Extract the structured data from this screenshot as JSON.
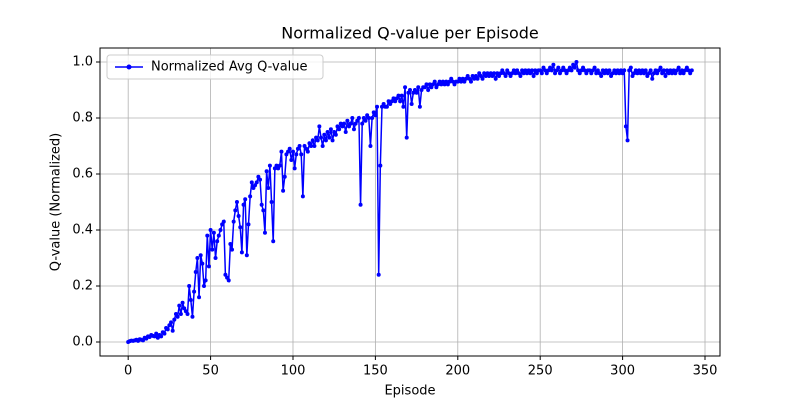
{
  "chart_data": {
    "type": "line",
    "title": "Normalized Q-value per Episode",
    "xlabel": "Episode",
    "ylabel": "Q-value (Normalized)",
    "xlim": [
      -17.1,
      359.1
    ],
    "ylim": [
      -0.05,
      1.05
    ],
    "xticks": [
      0,
      50,
      100,
      150,
      200,
      250,
      300,
      350
    ],
    "yticks": [
      {
        "value": 0,
        "label": "0.0"
      },
      0.2,
      0.4,
      0.6,
      0.8,
      {
        "value": 1,
        "label": "1.0"
      }
    ],
    "grid": true,
    "legend": "upper left",
    "x": [
      0,
      1,
      2,
      3,
      4,
      5,
      6,
      7,
      8,
      9,
      10,
      11,
      12,
      13,
      14,
      15,
      16,
      17,
      18,
      19,
      20,
      21,
      22,
      23,
      24,
      25,
      26,
      27,
      28,
      29,
      30,
      31,
      32,
      33,
      34,
      35,
      36,
      37,
      38,
      39,
      40,
      41,
      42,
      43,
      44,
      45,
      46,
      47,
      48,
      49,
      50,
      51,
      52,
      53,
      54,
      55,
      56,
      57,
      58,
      59,
      60,
      61,
      62,
      63,
      64,
      65,
      66,
      67,
      68,
      69,
      70,
      71,
      72,
      73,
      74,
      75,
      76,
      77,
      78,
      79,
      80,
      81,
      82,
      83,
      84,
      85,
      86,
      87,
      88,
      89,
      90,
      91,
      92,
      93,
      94,
      95,
      96,
      97,
      98,
      99,
      100,
      101,
      102,
      103,
      104,
      105,
      106,
      107,
      108,
      109,
      110,
      111,
      112,
      113,
      114,
      115,
      116,
      117,
      118,
      119,
      120,
      121,
      122,
      123,
      124,
      125,
      126,
      127,
      128,
      129,
      130,
      131,
      132,
      133,
      134,
      135,
      136,
      137,
      138,
      139,
      140,
      141,
      142,
      143,
      144,
      145,
      146,
      147,
      148,
      149,
      150,
      151,
      152,
      153,
      154,
      155,
      156,
      157,
      158,
      159,
      160,
      161,
      162,
      163,
      164,
      165,
      166,
      167,
      168,
      169,
      170,
      171,
      172,
      173,
      174,
      175,
      176,
      177,
      178,
      179,
      180,
      181,
      182,
      183,
      184,
      185,
      186,
      187,
      188,
      189,
      190,
      191,
      192,
      193,
      194,
      195,
      196,
      197,
      198,
      199,
      200,
      201,
      202,
      203,
      204,
      205,
      206,
      207,
      208,
      209,
      210,
      211,
      212,
      213,
      214,
      215,
      216,
      217,
      218,
      219,
      220,
      221,
      222,
      223,
      224,
      225,
      226,
      227,
      228,
      229,
      230,
      231,
      232,
      233,
      234,
      235,
      236,
      237,
      238,
      239,
      240,
      241,
      242,
      243,
      244,
      245,
      246,
      247,
      248,
      249,
      250,
      251,
      252,
      253,
      254,
      255,
      256,
      257,
      258,
      259,
      260,
      261,
      262,
      263,
      264,
      265,
      266,
      267,
      268,
      269,
      270,
      271,
      272,
      273,
      274,
      275,
      276,
      277,
      278,
      279,
      280,
      281,
      282,
      283,
      284,
      285,
      286,
      287,
      288,
      289,
      290,
      291,
      292,
      293,
      294,
      295,
      296,
      297,
      298,
      299,
      300,
      301,
      302,
      303,
      304,
      305,
      306,
      307,
      308,
      309,
      310,
      311,
      312,
      313,
      314,
      315,
      316,
      317,
      318,
      319,
      320,
      321,
      322,
      323,
      324,
      325,
      326,
      327,
      328,
      329,
      330,
      331,
      332,
      333,
      334,
      335,
      336,
      337,
      338,
      339,
      340,
      341,
      342
    ],
    "series": [
      {
        "name": "Normalized Avg Q-value",
        "color": "#0000ff",
        "values": [
          0.0,
          0.003,
          0.005,
          0.004,
          0.006,
          0.008,
          0.004,
          0.01,
          0.008,
          0.006,
          0.015,
          0.012,
          0.02,
          0.018,
          0.025,
          0.022,
          0.02,
          0.03,
          0.015,
          0.025,
          0.02,
          0.035,
          0.03,
          0.05,
          0.045,
          0.06,
          0.07,
          0.04,
          0.08,
          0.1,
          0.09,
          0.13,
          0.1,
          0.14,
          0.12,
          0.11,
          0.1,
          0.2,
          0.15,
          0.09,
          0.18,
          0.25,
          0.3,
          0.16,
          0.31,
          0.28,
          0.2,
          0.22,
          0.38,
          0.27,
          0.4,
          0.33,
          0.39,
          0.3,
          0.36,
          0.38,
          0.4,
          0.42,
          0.43,
          0.24,
          0.23,
          0.22,
          0.35,
          0.33,
          0.43,
          0.47,
          0.5,
          0.45,
          0.41,
          0.32,
          0.49,
          0.51,
          0.31,
          0.42,
          0.52,
          0.57,
          0.55,
          0.56,
          0.57,
          0.59,
          0.58,
          0.49,
          0.47,
          0.39,
          0.61,
          0.55,
          0.63,
          0.5,
          0.36,
          0.62,
          0.63,
          0.62,
          0.63,
          0.68,
          0.54,
          0.59,
          0.67,
          0.68,
          0.69,
          0.65,
          0.68,
          0.62,
          0.67,
          0.69,
          0.7,
          0.67,
          0.52,
          0.7,
          0.69,
          0.68,
          0.71,
          0.7,
          0.72,
          0.7,
          0.73,
          0.72,
          0.77,
          0.73,
          0.7,
          0.74,
          0.72,
          0.75,
          0.73,
          0.76,
          0.72,
          0.75,
          0.74,
          0.77,
          0.76,
          0.78,
          0.77,
          0.78,
          0.75,
          0.79,
          0.77,
          0.78,
          0.8,
          0.76,
          0.78,
          0.79,
          0.8,
          0.49,
          0.78,
          0.8,
          0.79,
          0.81,
          0.8,
          0.7,
          0.8,
          0.82,
          0.81,
          0.84,
          0.24,
          0.63,
          0.84,
          0.85,
          0.84,
          0.84,
          0.86,
          0.85,
          0.86,
          0.87,
          0.86,
          0.87,
          0.88,
          0.86,
          0.88,
          0.84,
          0.91,
          0.73,
          0.89,
          0.9,
          0.85,
          0.89,
          0.9,
          0.89,
          0.91,
          0.84,
          0.9,
          0.91,
          0.91,
          0.92,
          0.9,
          0.92,
          0.91,
          0.92,
          0.93,
          0.91,
          0.92,
          0.93,
          0.92,
          0.93,
          0.92,
          0.93,
          0.92,
          0.93,
          0.94,
          0.93,
          0.92,
          0.93,
          0.93,
          0.94,
          0.93,
          0.94,
          0.93,
          0.94,
          0.95,
          0.94,
          0.93,
          0.95,
          0.94,
          0.95,
          0.94,
          0.96,
          0.95,
          0.94,
          0.96,
          0.95,
          0.96,
          0.95,
          0.96,
          0.95,
          0.96,
          0.94,
          0.96,
          0.95,
          0.96,
          0.97,
          0.96,
          0.95,
          0.97,
          0.96,
          0.95,
          0.96,
          0.97,
          0.96,
          0.97,
          0.96,
          0.95,
          0.97,
          0.96,
          0.97,
          0.96,
          0.97,
          0.96,
          0.97,
          0.95,
          0.97,
          0.96,
          0.97,
          0.97,
          0.96,
          0.98,
          0.97,
          0.96,
          0.97,
          0.98,
          0.97,
          0.99,
          0.96,
          0.97,
          0.98,
          0.96,
          0.97,
          0.98,
          0.97,
          0.96,
          0.97,
          0.98,
          0.97,
          0.99,
          0.98,
          1.0,
          0.97,
          0.96,
          0.97,
          0.98,
          0.97,
          0.96,
          0.97,
          0.97,
          0.96,
          0.97,
          0.98,
          0.96,
          0.97,
          0.96,
          0.95,
          0.97,
          0.96,
          0.97,
          0.96,
          0.97,
          0.95,
          0.96,
          0.97,
          0.96,
          0.97,
          0.96,
          0.97,
          0.96,
          0.97,
          0.77,
          0.72,
          0.97,
          0.98,
          0.95,
          0.96,
          0.97,
          0.96,
          0.97,
          0.96,
          0.97,
          0.96,
          0.97,
          0.95,
          0.96,
          0.97,
          0.94,
          0.96,
          0.97,
          0.96,
          0.97,
          0.98,
          0.96,
          0.97,
          0.95,
          0.97,
          0.96,
          0.97,
          0.96,
          0.97,
          0.96,
          0.97,
          0.98,
          0.96,
          0.97,
          0.96,
          0.97,
          0.98,
          0.97,
          0.96,
          0.97
        ]
      }
    ]
  }
}
